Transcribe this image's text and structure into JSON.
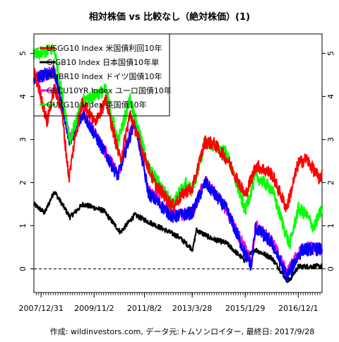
{
  "chart_data": {
    "type": "line",
    "title": "相対株価 vs 比較なし（絶対株価）(1)",
    "caption": "作成: wildinvestors.com, データ元:トムソンロイター, 最終日: 2017/9/28",
    "x_tick_labels": [
      "2007/12/31",
      "2009/11/2",
      "2011/8/2",
      "2013/3/28",
      "2015/1/29",
      "2016/12/1"
    ],
    "x_ticks": [
      "2007-12-31",
      "2009-11-02",
      "2011-08-02",
      "2013-03-28",
      "2015-01-29",
      "2016-12-01"
    ],
    "x_range": [
      "2007-10-01",
      "2017-09-28"
    ],
    "y_ticks": [
      0,
      1,
      2,
      3,
      4,
      5
    ],
    "ylim": [
      -0.55,
      5.45
    ],
    "reference_line": {
      "y": 0,
      "style": "dashed"
    },
    "legend_position": "top-left",
    "series": [
      {
        "name": "USGG10 Index 米国債利回10年",
        "color": "#ff0000",
        "points": [
          [
            "2007-10-01",
            4.6
          ],
          [
            "2007-12-31",
            4.0
          ],
          [
            "2008-03-15",
            3.4
          ],
          [
            "2008-06-15",
            4.2
          ],
          [
            "2008-09-15",
            3.7
          ],
          [
            "2008-12-18",
            2.1
          ],
          [
            "2009-03-01",
            3.0
          ],
          [
            "2009-06-10",
            3.9
          ],
          [
            "2009-11-02",
            3.4
          ],
          [
            "2010-04-01",
            3.9
          ],
          [
            "2010-10-01",
            2.5
          ],
          [
            "2011-02-01",
            3.6
          ],
          [
            "2011-08-02",
            2.6
          ],
          [
            "2011-12-01",
            2.0
          ],
          [
            "2012-07-25",
            1.45
          ],
          [
            "2013-01-01",
            1.8
          ],
          [
            "2013-03-28",
            1.85
          ],
          [
            "2013-09-05",
            2.95
          ],
          [
            "2014-01-01",
            2.9
          ],
          [
            "2014-07-01",
            2.5
          ],
          [
            "2015-01-29",
            1.7
          ],
          [
            "2015-06-15",
            2.4
          ],
          [
            "2016-01-01",
            2.2
          ],
          [
            "2016-07-06",
            1.4
          ],
          [
            "2016-12-01",
            2.45
          ],
          [
            "2017-03-15",
            2.55
          ],
          [
            "2017-09-08",
            2.05
          ],
          [
            "2017-09-28",
            2.3
          ]
        ]
      },
      {
        "name": "GJGB10 Index 日本国債10年単",
        "color": "#000000",
        "points": [
          [
            "2007-10-01",
            1.5
          ],
          [
            "2008-02-15",
            1.3
          ],
          [
            "2008-06-15",
            1.8
          ],
          [
            "2008-12-31",
            1.2
          ],
          [
            "2009-06-15",
            1.5
          ],
          [
            "2010-03-01",
            1.35
          ],
          [
            "2010-10-01",
            0.85
          ],
          [
            "2011-04-01",
            1.25
          ],
          [
            "2012-01-01",
            1.0
          ],
          [
            "2012-10-01",
            0.75
          ],
          [
            "2013-04-05",
            0.45
          ],
          [
            "2013-05-20",
            0.9
          ],
          [
            "2013-12-01",
            0.7
          ],
          [
            "2014-06-01",
            0.6
          ],
          [
            "2015-01-19",
            0.2
          ],
          [
            "2015-06-01",
            0.45
          ],
          [
            "2016-01-01",
            0.25
          ],
          [
            "2016-07-27",
            -0.3
          ],
          [
            "2016-12-01",
            0.05
          ],
          [
            "2017-09-28",
            0.06
          ]
        ]
      },
      {
        "name": "GDBR10 Index ドイツ国債10年",
        "color": "#0000ff",
        "points": [
          [
            "2007-10-01",
            4.4
          ],
          [
            "2008-06-15",
            4.6
          ],
          [
            "2008-12-31",
            2.95
          ],
          [
            "2009-06-15",
            3.6
          ],
          [
            "2010-08-31",
            2.15
          ],
          [
            "2011-04-01",
            3.45
          ],
          [
            "2011-09-22",
            1.75
          ],
          [
            "2012-07-23",
            1.2
          ],
          [
            "2013-03-28",
            1.3
          ],
          [
            "2013-09-10",
            2.0
          ],
          [
            "2014-06-01",
            1.4
          ],
          [
            "2015-01-29",
            0.35
          ],
          [
            "2015-04-17",
            0.07
          ],
          [
            "2015-06-10",
            0.95
          ],
          [
            "2016-01-01",
            0.6
          ],
          [
            "2016-07-08",
            -0.18
          ],
          [
            "2016-12-01",
            0.3
          ],
          [
            "2017-01-24",
            0.45
          ],
          [
            "2017-09-28",
            0.46
          ]
        ]
      },
      {
        "name": "GECU10YR Index ユーロ国債10年",
        "color": "#ff00cc",
        "points": [
          [
            "2007-10-01",
            4.4
          ],
          [
            "2008-06-15",
            4.6
          ],
          [
            "2008-12-31",
            3.0
          ],
          [
            "2009-06-15",
            3.6
          ],
          [
            "2010-08-31",
            2.2
          ],
          [
            "2011-04-01",
            3.5
          ],
          [
            "2011-09-22",
            1.8
          ],
          [
            "2012-07-23",
            1.25
          ],
          [
            "2013-03-28",
            1.3
          ],
          [
            "2013-09-10",
            2.05
          ],
          [
            "2014-06-01",
            1.4
          ],
          [
            "2015-01-29",
            0.45
          ],
          [
            "2015-04-17",
            0.12
          ],
          [
            "2015-06-10",
            1.0
          ],
          [
            "2016-01-01",
            0.65
          ],
          [
            "2016-07-08",
            -0.1
          ],
          [
            "2016-12-01",
            0.35
          ],
          [
            "2017-01-24",
            0.5
          ],
          [
            "2017-09-28",
            0.45
          ]
        ]
      },
      {
        "name": "GUKG10 Index 英国債10年",
        "color": "#00ff00",
        "points": [
          [
            "2007-10-01",
            4.95
          ],
          [
            "2008-06-15",
            5.1
          ],
          [
            "2008-12-31",
            3.0
          ],
          [
            "2009-06-15",
            3.9
          ],
          [
            "2010-04-01",
            4.15
          ],
          [
            "2010-08-31",
            2.95
          ],
          [
            "2011-02-01",
            3.95
          ],
          [
            "2011-09-22",
            2.35
          ],
          [
            "2012-07-23",
            1.5
          ],
          [
            "2013-01-01",
            2.0
          ],
          [
            "2013-03-28",
            1.8
          ],
          [
            "2013-09-10",
            2.95
          ],
          [
            "2014-01-01",
            2.85
          ],
          [
            "2014-06-01",
            2.7
          ],
          [
            "2015-01-29",
            1.35
          ],
          [
            "2015-06-10",
            2.15
          ],
          [
            "2016-01-01",
            1.85
          ],
          [
            "2016-08-12",
            0.55
          ],
          [
            "2016-12-01",
            1.4
          ],
          [
            "2017-03-15",
            1.25
          ],
          [
            "2017-06-14",
            0.95
          ],
          [
            "2017-09-28",
            1.4
          ]
        ]
      }
    ]
  }
}
